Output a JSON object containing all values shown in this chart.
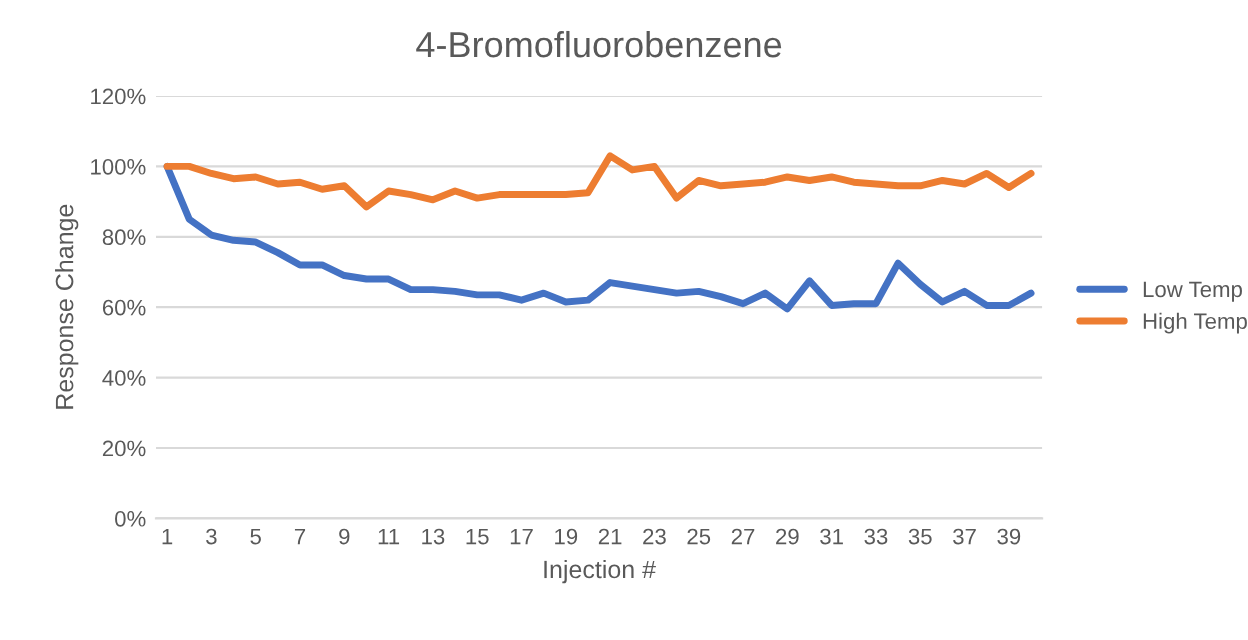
{
  "chart_data": {
    "type": "line",
    "title": "4-Bromofluorobenzene",
    "xlabel": "Injection #",
    "ylabel": "Response Change",
    "categories": [
      "1",
      null,
      "3",
      null,
      "5",
      null,
      "7",
      null,
      "9",
      null,
      "11",
      null,
      "13",
      null,
      "15",
      null,
      "17",
      null,
      "19",
      null,
      "21",
      null,
      "23",
      null,
      "25",
      null,
      "27",
      null,
      "29",
      null,
      "31",
      null,
      "33",
      null,
      "35",
      null,
      "37",
      null,
      "39",
      null
    ],
    "series": [
      {
        "name": "Low Temp",
        "color": "#4472c4",
        "values": [
          100,
          85,
          80.5,
          79,
          78.5,
          75.5,
          72,
          72,
          69,
          68,
          68,
          65,
          65,
          64.5,
          63.5,
          63.5,
          62,
          64,
          61.5,
          62,
          67,
          66,
          65,
          64,
          64.5,
          63,
          61,
          64,
          59.5,
          67.5,
          60.5,
          61,
          61,
          72.5,
          66.5,
          61.5,
          64.5,
          60.5,
          60.5,
          64
        ]
      },
      {
        "name": "High Temp",
        "color": "#ed7d31",
        "values": [
          100,
          100,
          98,
          96.5,
          97,
          95,
          95.5,
          93.5,
          94.5,
          88.5,
          93,
          92,
          90.5,
          93,
          91,
          92,
          92,
          92,
          92,
          92.5,
          103,
          99,
          100,
          91,
          96,
          94.5,
          95,
          95.5,
          97,
          96,
          97,
          95.5,
          95,
          94.5,
          94.5,
          96,
          95,
          98,
          94,
          98
        ]
      }
    ],
    "ylim": [
      0,
      120
    ],
    "yticks": [
      {
        "value": 0,
        "label": "0%"
      },
      {
        "value": 20,
        "label": "20%"
      },
      {
        "value": 40,
        "label": "40%"
      },
      {
        "value": 60,
        "label": "60%"
      },
      {
        "value": 80,
        "label": "80%"
      },
      {
        "value": 100,
        "label": "100%"
      },
      {
        "value": 120,
        "label": "120%"
      }
    ],
    "grid": "y",
    "legend": "right",
    "marker": "none",
    "line_style": "solid"
  }
}
